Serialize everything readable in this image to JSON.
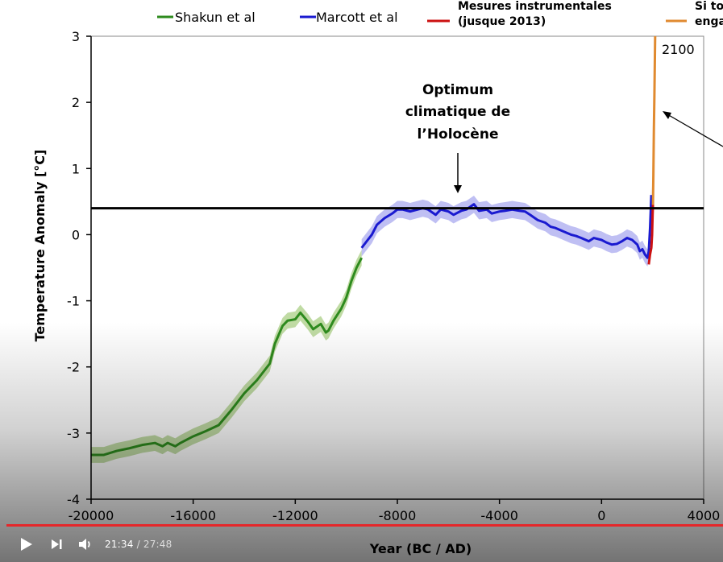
{
  "chart_data": {
    "type": "line",
    "title": "",
    "xlabel": "Year (BC / AD)",
    "ylabel": "Temperature Anomaly [°C]",
    "xlim": [
      -20000,
      4000
    ],
    "ylim": [
      -4,
      3
    ],
    "x_ticks": [
      "-20000",
      "-16000",
      "-12000",
      "-8000",
      "-4000",
      "0",
      "4000"
    ],
    "y_ticks": [
      "3",
      "2",
      "1",
      "0",
      "-1",
      "-2",
      "-3",
      "-4"
    ],
    "reference_line_y": 0.4,
    "legend": [
      {
        "name": "Shakun et al",
        "color": "#2e8b1e"
      },
      {
        "name": "Marcott et al",
        "color": "#1a1ad0"
      },
      {
        "name": "Mesures instrumentales (jusque 2013)",
        "line1": "Mesures instrumentales",
        "line2": "(jusque 2013)",
        "color": "#cc1111"
      },
      {
        "name": "Si to... enga...",
        "line1": "Si to",
        "line2": "enga",
        "color": "#e08a30"
      }
    ],
    "annotations": {
      "holocene": {
        "line1": "Optimum",
        "line2": "climatique de",
        "line3": "l’Holocène",
        "x": -5600,
        "y": 0.4
      },
      "year_2100": {
        "label": "2100",
        "x": 2100,
        "y": 2.9
      }
    },
    "series": [
      {
        "name": "Shakun et al",
        "color": "#2e8b1e",
        "band_color": "#b9d79a",
        "band_halfwidth": 0.12,
        "x": [
          -20000,
          -19500,
          -19000,
          -18500,
          -18000,
          -17500,
          -17200,
          -17000,
          -16700,
          -16500,
          -16000,
          -15500,
          -15000,
          -14500,
          -14000,
          -13500,
          -13000,
          -12800,
          -12500,
          -12300,
          -12000,
          -11800,
          -11500,
          -11300,
          -11000,
          -10800,
          -10700,
          -10500,
          -10200,
          -10000,
          -9800,
          -9600,
          -9400
        ],
        "y": [
          -3.33,
          -3.33,
          -3.27,
          -3.23,
          -3.18,
          -3.15,
          -3.2,
          -3.15,
          -3.2,
          -3.15,
          -3.05,
          -2.97,
          -2.88,
          -2.65,
          -2.4,
          -2.2,
          -1.95,
          -1.65,
          -1.38,
          -1.3,
          -1.28,
          -1.18,
          -1.32,
          -1.43,
          -1.35,
          -1.48,
          -1.45,
          -1.3,
          -1.12,
          -0.95,
          -0.7,
          -0.5,
          -0.35
        ]
      },
      {
        "name": "Marcott et al",
        "color": "#1a1ad0",
        "band_color": "#b8b8f2",
        "band_halfwidth": 0.13,
        "x": [
          -9400,
          -9200,
          -9000,
          -8800,
          -8500,
          -8200,
          -8000,
          -7800,
          -7500,
          -7200,
          -7000,
          -6800,
          -6500,
          -6300,
          -6000,
          -5800,
          -5500,
          -5300,
          -5000,
          -4800,
          -4500,
          -4300,
          -4000,
          -3800,
          -3500,
          -3200,
          -3000,
          -2800,
          -2500,
          -2200,
          -2000,
          -1800,
          -1500,
          -1200,
          -1000,
          -800,
          -500,
          -300,
          0,
          200,
          400,
          600,
          800,
          1000,
          1200,
          1400,
          1500,
          1600,
          1700,
          1800,
          1850,
          1900,
          1950
        ],
        "y": [
          -0.2,
          -0.1,
          0.0,
          0.15,
          0.25,
          0.32,
          0.38,
          0.38,
          0.35,
          0.38,
          0.4,
          0.38,
          0.3,
          0.38,
          0.35,
          0.3,
          0.36,
          0.38,
          0.46,
          0.36,
          0.38,
          0.32,
          0.35,
          0.36,
          0.38,
          0.36,
          0.35,
          0.3,
          0.22,
          0.18,
          0.12,
          0.1,
          0.05,
          0.0,
          -0.02,
          -0.05,
          -0.1,
          -0.05,
          -0.08,
          -0.12,
          -0.15,
          -0.14,
          -0.1,
          -0.05,
          -0.08,
          -0.15,
          -0.25,
          -0.22,
          -0.3,
          -0.35,
          -0.25,
          0.1,
          0.6
        ]
      },
      {
        "name": "Mesures instrumentales (jusque 2013)",
        "color": "#cc1111",
        "x": [
          1850,
          1900,
          1950,
          1980,
          2000,
          2013
        ],
        "y": [
          -0.45,
          -0.3,
          -0.2,
          0.0,
          0.3,
          0.45
        ]
      },
      {
        "name": "Si to... enga...",
        "color": "#e08a30",
        "x": [
          2013,
          2030,
          2050,
          2070,
          2090,
          2100
        ],
        "y": [
          0.45,
          0.9,
          1.6,
          2.1,
          2.7,
          3.0
        ]
      }
    ]
  },
  "player": {
    "time_current": "21:34",
    "time_separator": " / ",
    "time_total": "27:48",
    "progress_fraction": 0.776,
    "icons": {
      "play": "play-icon",
      "next": "next-icon",
      "volume": "volume-icon"
    }
  }
}
